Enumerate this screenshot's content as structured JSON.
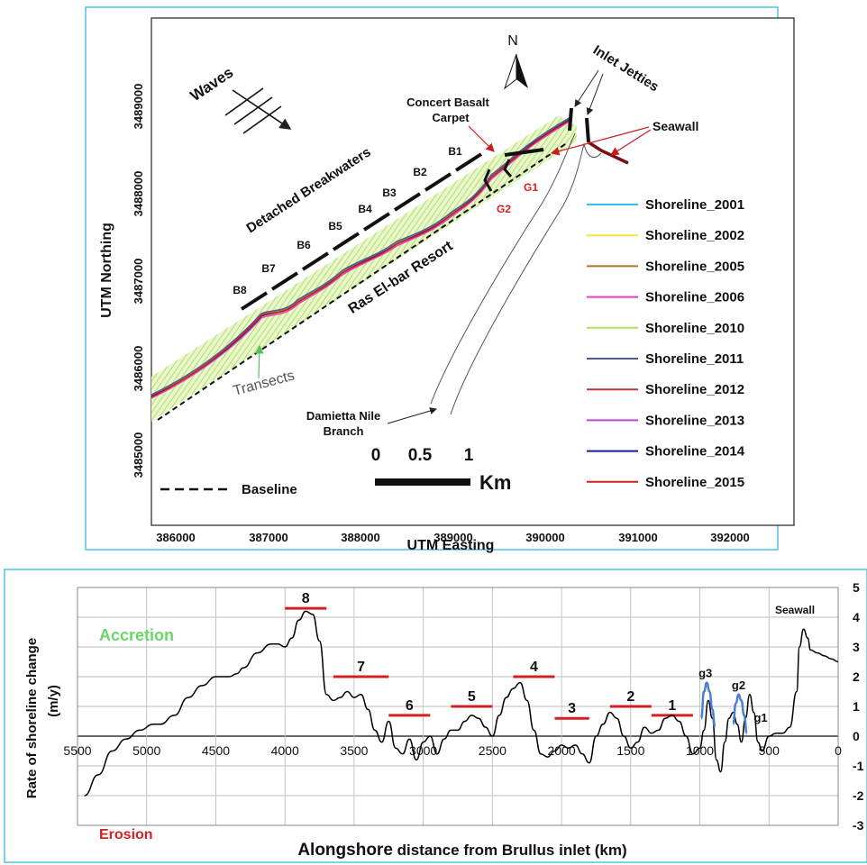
{
  "map_panel": {
    "ylabel": "UTM Northing",
    "xlabel": "UTM Easting",
    "x_ticks": [
      "386000",
      "387000",
      "388000",
      "389000",
      "390000",
      "391000",
      "392000"
    ],
    "y_ticks": [
      "3489000",
      "3488000",
      "3487000",
      "3486000",
      "3485000"
    ],
    "north_label": "N",
    "waves_label": "Waves",
    "labels": {
      "concert_basalt": [
        "Concert Basalt",
        "Carpet"
      ],
      "inlet_jetties": "Inlet Jetties",
      "seawall": "Seawall",
      "detached_breakwaters": "Detached Breakwaters",
      "ras_el_bar": "Ras El-bar Resort",
      "transects": "Transects",
      "damietta": [
        "Damietta Nile",
        "Branch"
      ],
      "baseline": "Baseline",
      "g1": "G1",
      "g2": "G2"
    },
    "breakwater_labels": [
      "B1",
      "B2",
      "B3",
      "B4",
      "B5",
      "B6",
      "B7",
      "B8"
    ],
    "scale_bar": {
      "ticks": [
        "0",
        "0.5",
        "1"
      ],
      "unit": "Km"
    },
    "legend": [
      {
        "name": "Shoreline_2001",
        "color": "#33c3f0"
      },
      {
        "name": "Shoreline_2002",
        "color": "#f2e84a"
      },
      {
        "name": "Shoreline_2005",
        "color": "#b5732a"
      },
      {
        "name": "Shoreline_2006",
        "color": "#e23fc3"
      },
      {
        "name": "Shoreline_2010",
        "color": "#a8e85a"
      },
      {
        "name": "Shoreline_2011",
        "color": "#4a5a9a"
      },
      {
        "name": "Shoreline_2012",
        "color": "#b83a3a"
      },
      {
        "name": "Shoreline_2013",
        "color": "#b44ad8"
      },
      {
        "name": "Shoreline_2014",
        "color": "#1a1a8c"
      },
      {
        "name": "Shoreline_2015",
        "color": "#d42020"
      }
    ]
  },
  "chart_data": {
    "type": "line",
    "ylabel": "Rate of shoreline change (m/y)",
    "ylabel_lines": [
      "Rate of shoreline change",
      "(m/y)"
    ],
    "xlabel_bold": "Alongshore",
    "xlabel_rest": "distance from Brullus inlet (km)",
    "x_reversed": true,
    "xlim": [
      0,
      5500
    ],
    "ylim": [
      -3,
      5
    ],
    "x_ticks": [
      5500,
      5000,
      4500,
      4000,
      3500,
      3000,
      2500,
      2000,
      1500,
      1000,
      500,
      0
    ],
    "y_ticks": [
      5,
      4,
      3,
      2,
      1,
      0,
      -1,
      -2,
      -3
    ],
    "grid": true,
    "annotations": {
      "accretion": "Accretion",
      "erosion": "Erosion",
      "seawall": "Seawall",
      "groins": [
        {
          "label": "g3",
          "x": 960,
          "y": 1.8
        },
        {
          "label": "g2",
          "x": 720,
          "y": 1.4
        },
        {
          "label": "g1",
          "x": 560,
          "y": 0.3
        }
      ]
    },
    "breakwaters": [
      {
        "label": "8",
        "x_start": 4000,
        "x_end": 3700,
        "y": 4.3
      },
      {
        "label": "7",
        "x_start": 3650,
        "x_end": 3250,
        "y": 2.0
      },
      {
        "label": "6",
        "x_start": 3250,
        "x_end": 2950,
        "y": 0.7
      },
      {
        "label": "5",
        "x_start": 2800,
        "x_end": 2500,
        "y": 1.0
      },
      {
        "label": "4",
        "x_start": 2350,
        "x_end": 2050,
        "y": 2.0
      },
      {
        "label": "3",
        "x_start": 2050,
        "x_end": 1800,
        "y": 0.6
      },
      {
        "label": "2",
        "x_start": 1650,
        "x_end": 1350,
        "y": 1.0
      },
      {
        "label": "1",
        "x_start": 1350,
        "x_end": 1050,
        "y": 0.7
      }
    ],
    "series": [
      {
        "color": "#000000",
        "x": [
          5450,
          5350,
          5250,
          5150,
          5050,
          4950,
          4900,
          4800,
          4700,
          4600,
          4500,
          4400,
          4350,
          4300,
          4200,
          4100,
          4050,
          4000,
          3950,
          3900,
          3850,
          3800,
          3750,
          3700,
          3650,
          3600,
          3550,
          3500,
          3450,
          3400,
          3350,
          3300,
          3250,
          3200,
          3150,
          3100,
          3050,
          3000,
          2950,
          2900,
          2850,
          2800,
          2750,
          2700,
          2650,
          2600,
          2550,
          2500,
          2450,
          2400,
          2350,
          2300,
          2250,
          2200,
          2150,
          2100,
          2050,
          2000,
          1950,
          1900,
          1850,
          1800,
          1750,
          1700,
          1650,
          1600,
          1550,
          1500,
          1450,
          1400,
          1350,
          1300,
          1250,
          1200,
          1150,
          1100,
          1050,
          1000,
          970,
          940,
          910,
          880,
          850,
          820,
          790,
          760,
          730,
          700,
          670,
          640,
          610,
          580,
          550,
          500,
          450,
          400,
          350,
          300,
          280,
          250,
          220,
          200,
          150,
          100,
          50,
          0
        ],
        "y": [
          -2.0,
          -1.3,
          -0.5,
          -0.1,
          0.2,
          0.4,
          0.4,
          0.7,
          1.3,
          1.7,
          2.0,
          2.0,
          2.1,
          2.3,
          2.8,
          3.1,
          3.1,
          3.0,
          3.3,
          3.9,
          4.2,
          4.1,
          3.2,
          1.4,
          1.2,
          1.3,
          1.5,
          1.3,
          1.4,
          0.9,
          0.2,
          -0.2,
          0.5,
          -0.4,
          -0.6,
          -0.1,
          -0.8,
          -0.2,
          0.0,
          -0.6,
          -0.1,
          0.2,
          0.2,
          0.5,
          0.7,
          0.6,
          0.3,
          0.0,
          0.7,
          1.3,
          1.6,
          1.8,
          1.2,
          0.2,
          -0.6,
          -0.7,
          -0.5,
          -0.3,
          -0.4,
          -0.3,
          -0.6,
          -0.9,
          0.0,
          0.4,
          0.8,
          0.6,
          0.0,
          -0.4,
          -0.2,
          0.3,
          0.1,
          0.2,
          0.6,
          0.7,
          0.5,
          0.0,
          -0.6,
          -0.4,
          0.2,
          1.2,
          0.6,
          -0.8,
          -1.2,
          -0.2,
          0.6,
          0.8,
          0.4,
          -0.2,
          0.6,
          1.4,
          0.8,
          -0.2,
          -0.5,
          0.0,
          0.1,
          0.1,
          0.3,
          1.5,
          3.0,
          3.6,
          3.3,
          2.9,
          2.8,
          2.7,
          2.6,
          2.5
        ]
      },
      {
        "color": "#4a7fd4",
        "x": [
          990,
          970,
          950,
          930,
          910,
          890
        ],
        "y": [
          0.6,
          1.5,
          1.8,
          1.5,
          0.9,
          0.3
        ]
      },
      {
        "color": "#4a7fd4",
        "x": [
          760,
          740,
          720,
          700,
          680,
          660
        ],
        "y": [
          0.4,
          1.1,
          1.4,
          1.2,
          0.7,
          0.1
        ]
      }
    ]
  }
}
